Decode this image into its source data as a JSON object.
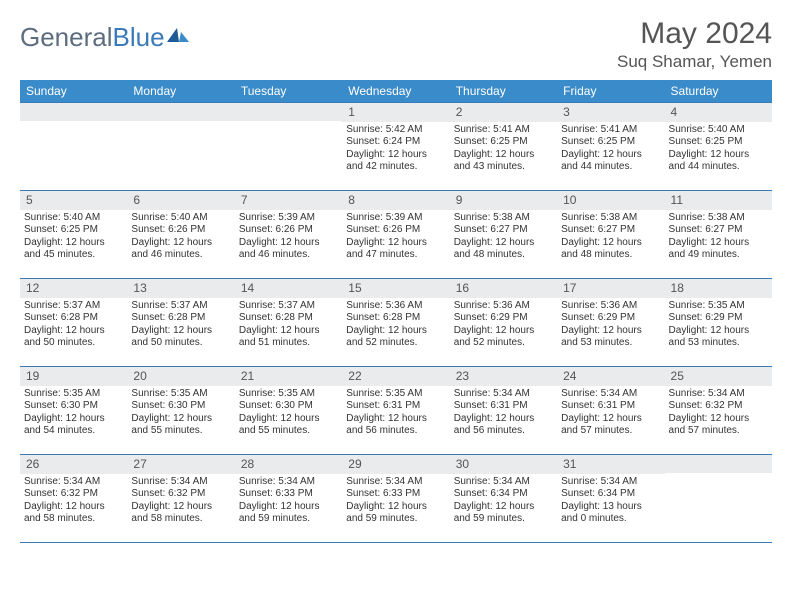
{
  "logo": {
    "text1": "General",
    "text2": "Blue"
  },
  "header": {
    "title": "May 2024",
    "location": "Suq Shamar, Yemen"
  },
  "colors": {
    "header_bg": "#3a8bc9",
    "header_text": "#ffffff",
    "rule": "#3a7ab8",
    "daynum_bg": "#e9ebec",
    "body_text": "#333333",
    "title_text": "#555555"
  },
  "weekdays": [
    "Sunday",
    "Monday",
    "Tuesday",
    "Wednesday",
    "Thursday",
    "Friday",
    "Saturday"
  ],
  "layout": {
    "columns": 7,
    "rows": 5,
    "start_col_index": 3,
    "days_in_month": 31
  },
  "days": {
    "1": {
      "sunrise": "5:42 AM",
      "sunset": "6:24 PM",
      "daylight": "12 hours and 42 minutes."
    },
    "2": {
      "sunrise": "5:41 AM",
      "sunset": "6:25 PM",
      "daylight": "12 hours and 43 minutes."
    },
    "3": {
      "sunrise": "5:41 AM",
      "sunset": "6:25 PM",
      "daylight": "12 hours and 44 minutes."
    },
    "4": {
      "sunrise": "5:40 AM",
      "sunset": "6:25 PM",
      "daylight": "12 hours and 44 minutes."
    },
    "5": {
      "sunrise": "5:40 AM",
      "sunset": "6:25 PM",
      "daylight": "12 hours and 45 minutes."
    },
    "6": {
      "sunrise": "5:40 AM",
      "sunset": "6:26 PM",
      "daylight": "12 hours and 46 minutes."
    },
    "7": {
      "sunrise": "5:39 AM",
      "sunset": "6:26 PM",
      "daylight": "12 hours and 46 minutes."
    },
    "8": {
      "sunrise": "5:39 AM",
      "sunset": "6:26 PM",
      "daylight": "12 hours and 47 minutes."
    },
    "9": {
      "sunrise": "5:38 AM",
      "sunset": "6:27 PM",
      "daylight": "12 hours and 48 minutes."
    },
    "10": {
      "sunrise": "5:38 AM",
      "sunset": "6:27 PM",
      "daylight": "12 hours and 48 minutes."
    },
    "11": {
      "sunrise": "5:38 AM",
      "sunset": "6:27 PM",
      "daylight": "12 hours and 49 minutes."
    },
    "12": {
      "sunrise": "5:37 AM",
      "sunset": "6:28 PM",
      "daylight": "12 hours and 50 minutes."
    },
    "13": {
      "sunrise": "5:37 AM",
      "sunset": "6:28 PM",
      "daylight": "12 hours and 50 minutes."
    },
    "14": {
      "sunrise": "5:37 AM",
      "sunset": "6:28 PM",
      "daylight": "12 hours and 51 minutes."
    },
    "15": {
      "sunrise": "5:36 AM",
      "sunset": "6:28 PM",
      "daylight": "12 hours and 52 minutes."
    },
    "16": {
      "sunrise": "5:36 AM",
      "sunset": "6:29 PM",
      "daylight": "12 hours and 52 minutes."
    },
    "17": {
      "sunrise": "5:36 AM",
      "sunset": "6:29 PM",
      "daylight": "12 hours and 53 minutes."
    },
    "18": {
      "sunrise": "5:35 AM",
      "sunset": "6:29 PM",
      "daylight": "12 hours and 53 minutes."
    },
    "19": {
      "sunrise": "5:35 AM",
      "sunset": "6:30 PM",
      "daylight": "12 hours and 54 minutes."
    },
    "20": {
      "sunrise": "5:35 AM",
      "sunset": "6:30 PM",
      "daylight": "12 hours and 55 minutes."
    },
    "21": {
      "sunrise": "5:35 AM",
      "sunset": "6:30 PM",
      "daylight": "12 hours and 55 minutes."
    },
    "22": {
      "sunrise": "5:35 AM",
      "sunset": "6:31 PM",
      "daylight": "12 hours and 56 minutes."
    },
    "23": {
      "sunrise": "5:34 AM",
      "sunset": "6:31 PM",
      "daylight": "12 hours and 56 minutes."
    },
    "24": {
      "sunrise": "5:34 AM",
      "sunset": "6:31 PM",
      "daylight": "12 hours and 57 minutes."
    },
    "25": {
      "sunrise": "5:34 AM",
      "sunset": "6:32 PM",
      "daylight": "12 hours and 57 minutes."
    },
    "26": {
      "sunrise": "5:34 AM",
      "sunset": "6:32 PM",
      "daylight": "12 hours and 58 minutes."
    },
    "27": {
      "sunrise": "5:34 AM",
      "sunset": "6:32 PM",
      "daylight": "12 hours and 58 minutes."
    },
    "28": {
      "sunrise": "5:34 AM",
      "sunset": "6:33 PM",
      "daylight": "12 hours and 59 minutes."
    },
    "29": {
      "sunrise": "5:34 AM",
      "sunset": "6:33 PM",
      "daylight": "12 hours and 59 minutes."
    },
    "30": {
      "sunrise": "5:34 AM",
      "sunset": "6:34 PM",
      "daylight": "12 hours and 59 minutes."
    },
    "31": {
      "sunrise": "5:34 AM",
      "sunset": "6:34 PM",
      "daylight": "13 hours and 0 minutes."
    }
  },
  "labels": {
    "sunrise": "Sunrise:",
    "sunset": "Sunset:",
    "daylight": "Daylight:"
  }
}
